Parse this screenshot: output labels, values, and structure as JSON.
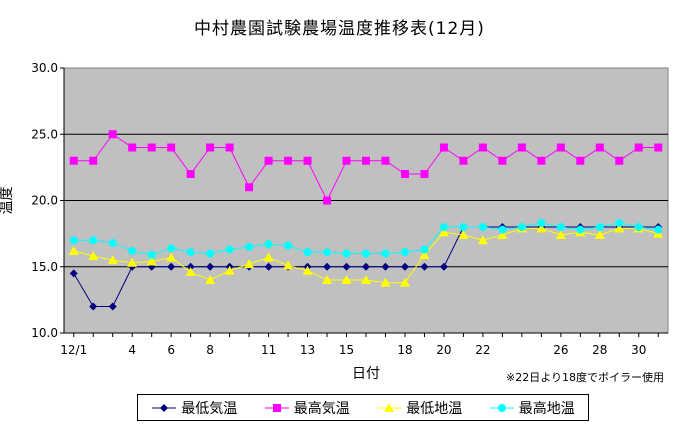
{
  "chart_data": {
    "type": "line",
    "title": "中村農園試験農場温度推移表(12月)",
    "xlabel": "日付",
    "ylabel": "温度",
    "note": "※22日より18度でボイラー使用",
    "ylim": [
      10,
      30
    ],
    "yticks": [
      "10.0",
      "15.0",
      "20.0",
      "25.0",
      "30.0"
    ],
    "grid": true,
    "legend_position": "bottom",
    "background": "#c0c0c0",
    "x_tick_labels": [
      {
        "day": 1,
        "label": "12/1"
      },
      {
        "day": 4,
        "label": "4"
      },
      {
        "day": 6,
        "label": "6"
      },
      {
        "day": 8,
        "label": "8"
      },
      {
        "day": 11,
        "label": "11"
      },
      {
        "day": 13,
        "label": "13"
      },
      {
        "day": 15,
        "label": "15"
      },
      {
        "day": 18,
        "label": "18"
      },
      {
        "day": 20,
        "label": "20"
      },
      {
        "day": 22,
        "label": "22"
      },
      {
        "day": 26,
        "label": "26"
      },
      {
        "day": 28,
        "label": "28"
      },
      {
        "day": 30,
        "label": "30"
      }
    ],
    "x": [
      1,
      2,
      3,
      4,
      5,
      6,
      7,
      8,
      9,
      10,
      11,
      12,
      13,
      14,
      15,
      16,
      17,
      18,
      19,
      20,
      21,
      22,
      23,
      24,
      25,
      26,
      27,
      28,
      29,
      30,
      31
    ],
    "series": [
      {
        "name": "最低気温",
        "color": "#000080",
        "marker": "diamond",
        "values": [
          14.5,
          12,
          12,
          15,
          15,
          15,
          15,
          15,
          15,
          15,
          15,
          15,
          15,
          15,
          15,
          15,
          15,
          15,
          15,
          15,
          18,
          18,
          18,
          18,
          18,
          18,
          18,
          18,
          18,
          18,
          18
        ]
      },
      {
        "name": "最高気温",
        "color": "#ff00ff",
        "marker": "square",
        "values": [
          23,
          23,
          25,
          24,
          24,
          24,
          22,
          24,
          24,
          21,
          23,
          23,
          23,
          20,
          23,
          23,
          23,
          22,
          22,
          24,
          23,
          24,
          23,
          24,
          23,
          24,
          23,
          24,
          23,
          24,
          24
        ]
      },
      {
        "name": "最低地温",
        "color": "#ffff00",
        "marker": "triangle",
        "values": [
          16.2,
          15.8,
          15.5,
          15.3,
          15.4,
          15.7,
          14.6,
          14.0,
          14.7,
          15.2,
          15.7,
          15.1,
          14.7,
          14.0,
          14.0,
          14.0,
          13.8,
          13.8,
          15.9,
          17.6,
          17.4,
          17.0,
          17.4,
          17.9,
          17.9,
          17.4,
          17.6,
          17.4,
          17.9,
          17.9,
          17.5
        ]
      },
      {
        "name": "最高地温",
        "color": "#00ffff",
        "marker": "circle",
        "values": [
          17.0,
          17.0,
          16.8,
          16.2,
          15.9,
          16.4,
          16.1,
          16.0,
          16.3,
          16.5,
          16.7,
          16.6,
          16.1,
          16.1,
          16.0,
          16.0,
          16.0,
          16.1,
          16.3,
          18.0,
          18.0,
          18.0,
          17.8,
          18.0,
          18.3,
          18.0,
          17.8,
          18.0,
          18.3,
          18.0,
          17.8
        ]
      }
    ]
  }
}
